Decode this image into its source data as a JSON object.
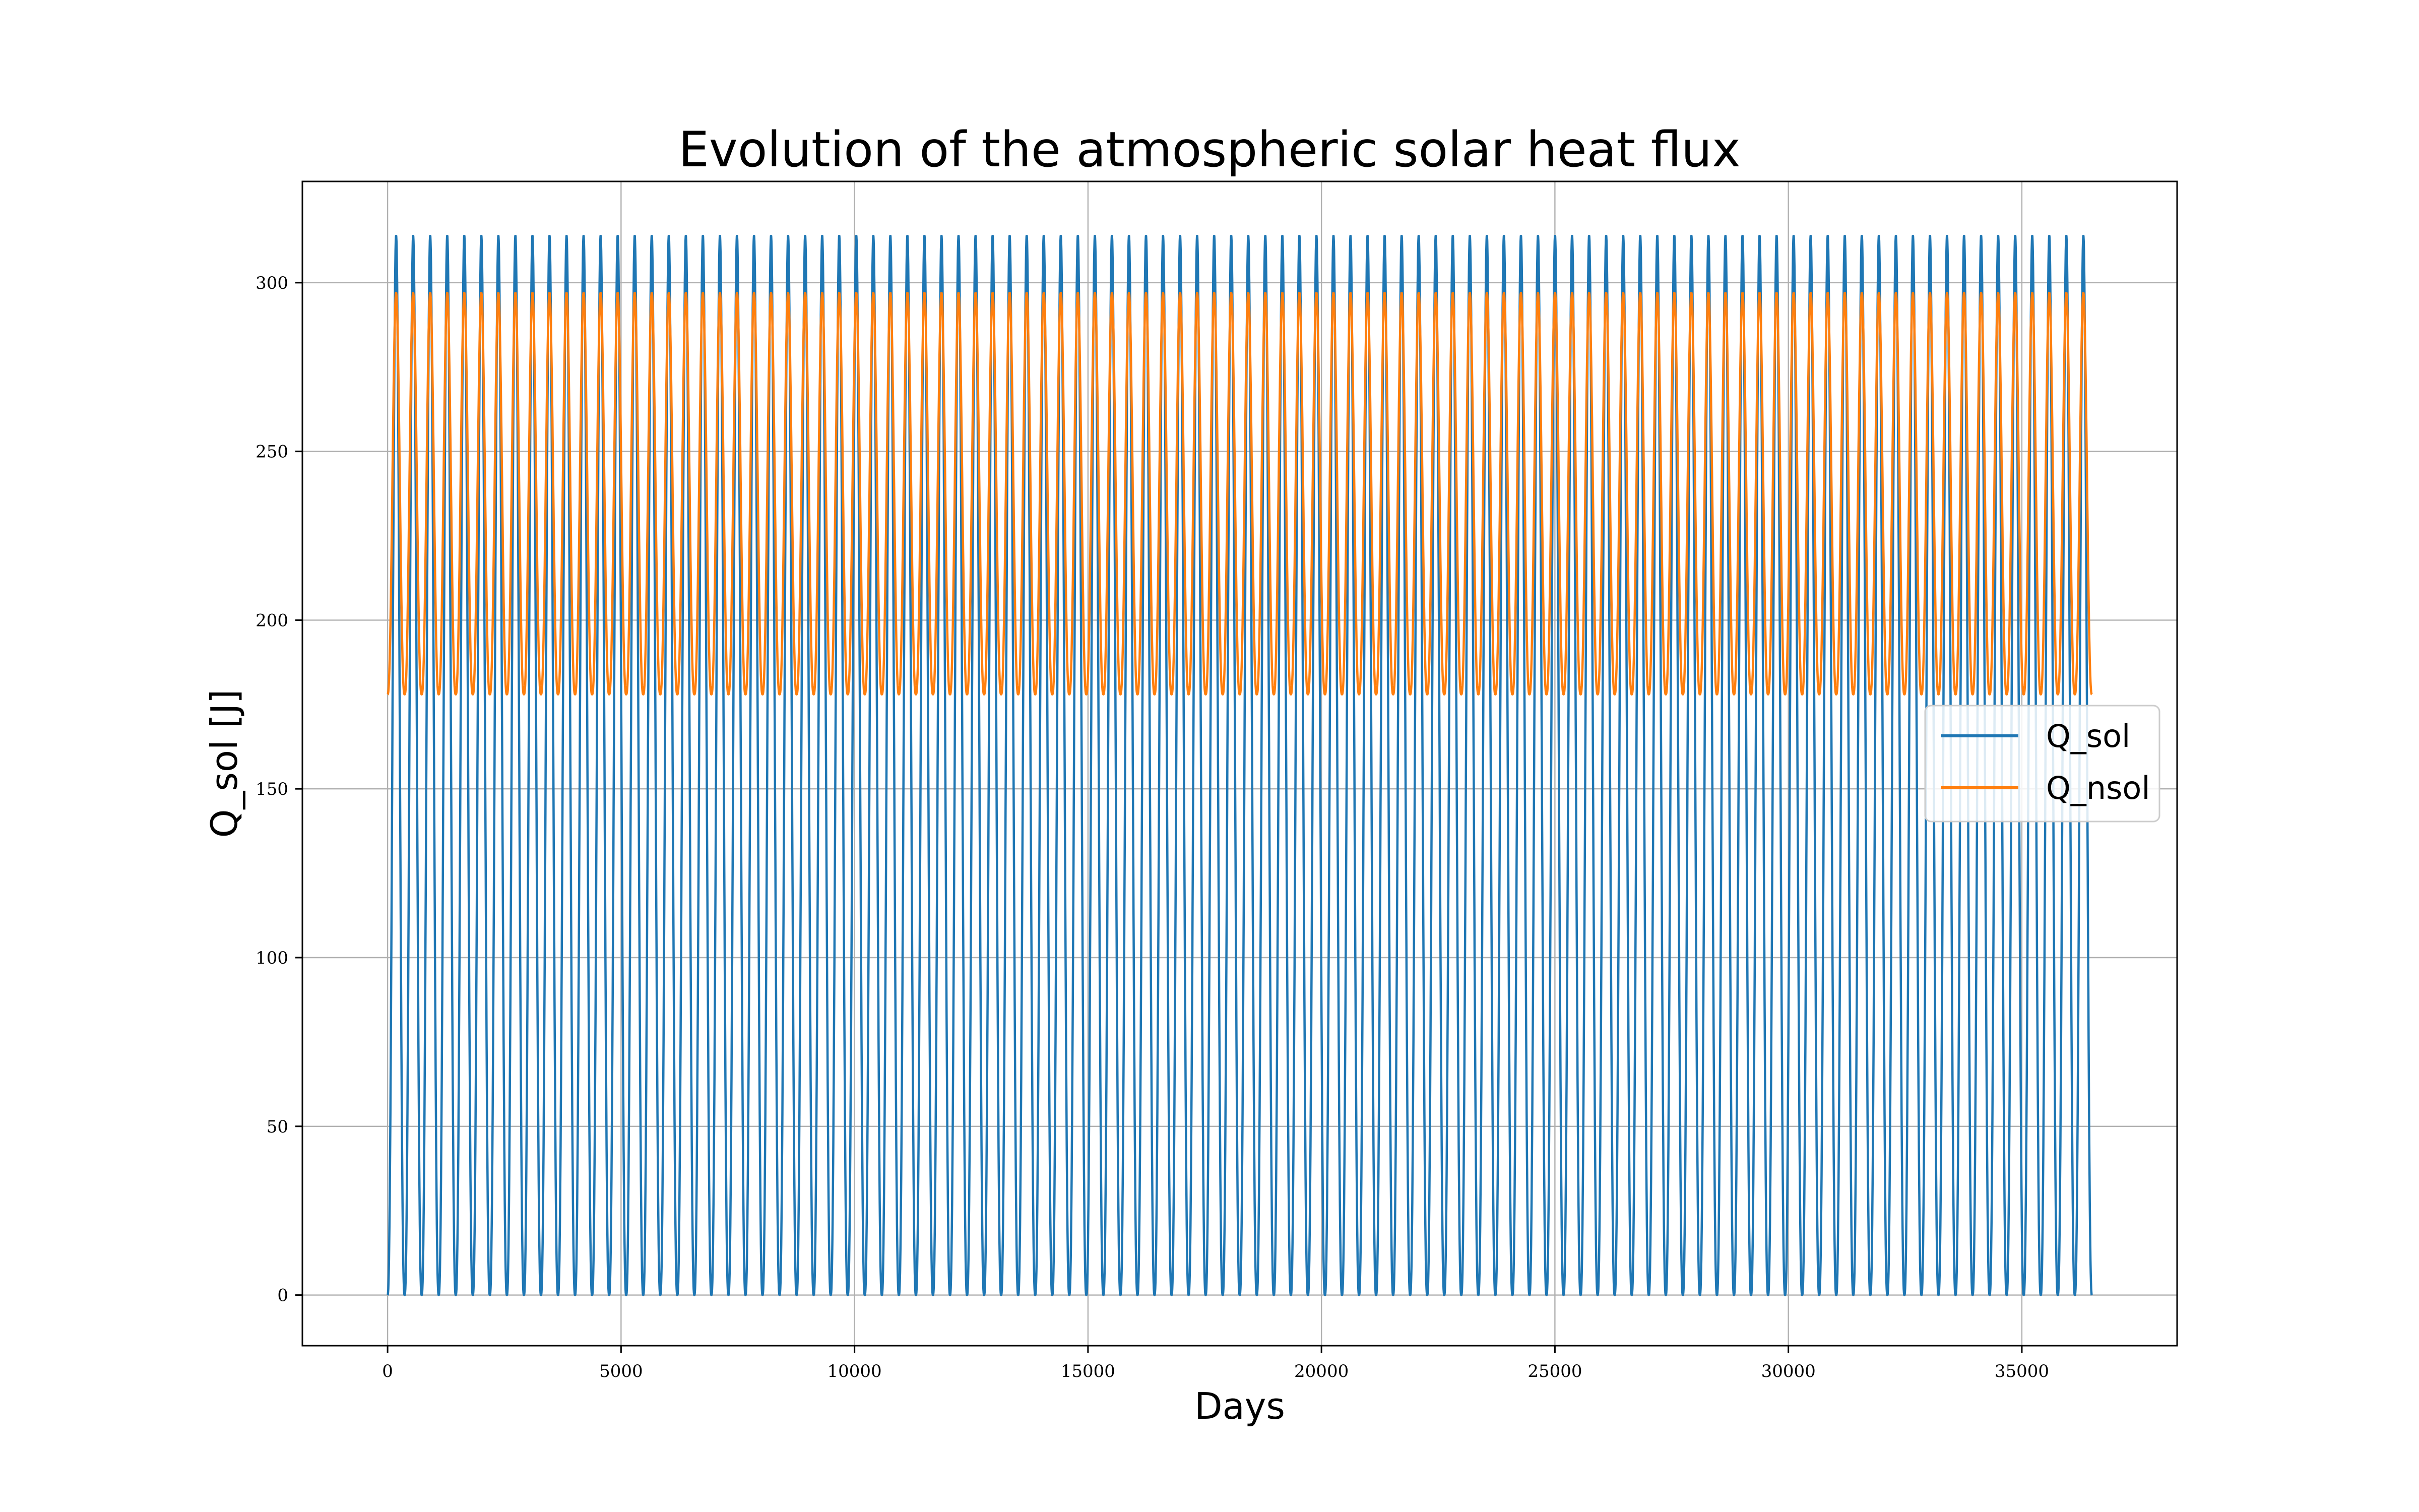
{
  "chart_data": {
    "type": "line",
    "title": "Evolution of the atmospheric solar heat flux",
    "xlabel": "Days",
    "ylabel": "Q_sol [J]",
    "xlim": [
      -1825,
      38325
    ],
    "ylim": [
      -15,
      330
    ],
    "xticks": [
      0,
      5000,
      10000,
      15000,
      20000,
      25000,
      30000,
      35000
    ],
    "yticks": [
      0,
      50,
      100,
      150,
      200,
      250,
      300
    ],
    "grid": true,
    "legend_position": "center-right",
    "x_range": [
      0,
      36500
    ],
    "period_days": 365,
    "cycles": 100,
    "series": [
      {
        "name": "Q_sol",
        "color": "#1f77b4",
        "min": 0,
        "max": 314,
        "shape": "seasonal pulse starting at 0"
      },
      {
        "name": "Q_nsol",
        "color": "#ff7f0e",
        "min": 178,
        "max": 297,
        "shape": "seasonal pulse starting at 178"
      }
    ]
  }
}
